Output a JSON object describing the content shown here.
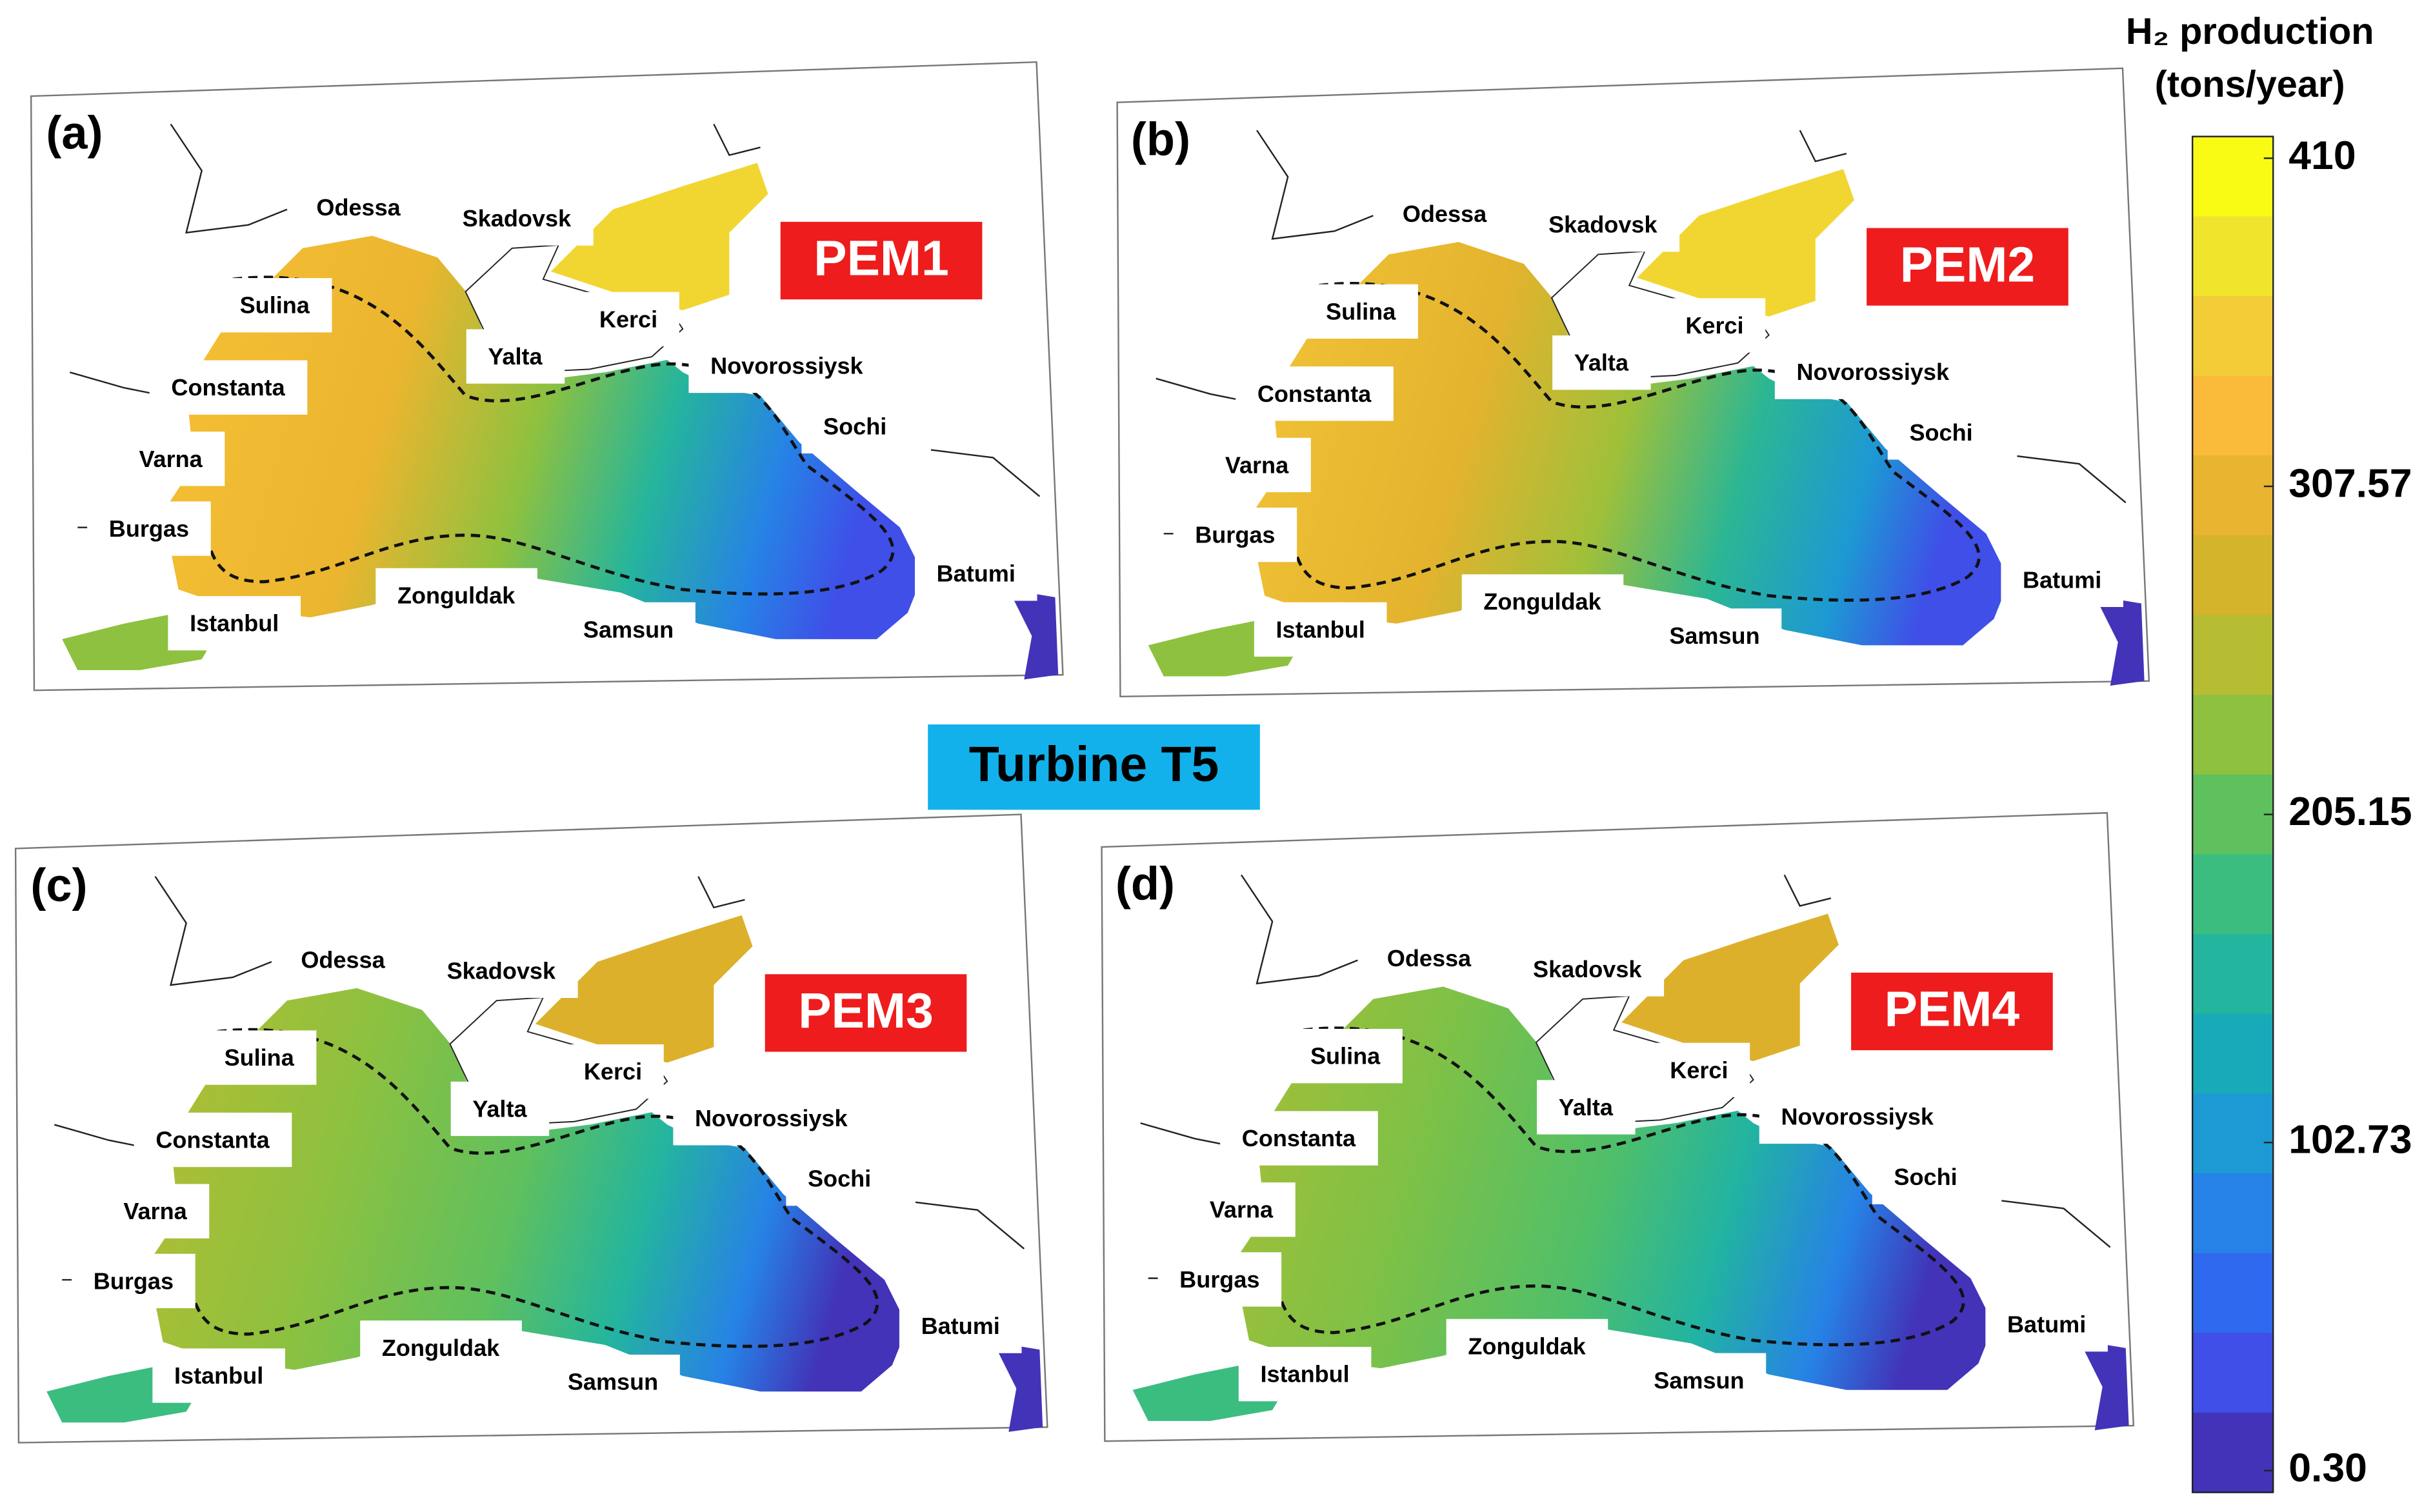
{
  "figure": {
    "center_label": "Turbine T5",
    "panels": [
      {
        "label": "(a)",
        "scenario": "PEM1",
        "cities": [
          "Odessa",
          "Skadovsk",
          "Sulina",
          "Kerci",
          "Yalta",
          "Novorossiysk",
          "Constanta",
          "Sochi",
          "Varna",
          "Burgas",
          "Batumi",
          "Zonguldak",
          "Istanbul",
          "Samsun"
        ]
      },
      {
        "label": "(b)",
        "scenario": "PEM2",
        "cities": [
          "Odessa",
          "Skadovsk",
          "Sulina",
          "Kerci",
          "Yalta",
          "Novorossiysk",
          "Constanta",
          "Sochi",
          "Varna",
          "Burgas",
          "Batumi",
          "Zonguldak",
          "Istanbul",
          "Samsun"
        ]
      },
      {
        "label": "(c)",
        "scenario": "PEM3",
        "cities": [
          "Odessa",
          "Skadovsk",
          "Sulina",
          "Kerci",
          "Yalta",
          "Novorossiysk",
          "Constanta",
          "Sochi",
          "Varna",
          "Burgas",
          "Batumi",
          "Zonguldak",
          "Istanbul",
          "Samsun"
        ]
      },
      {
        "label": "(d)",
        "scenario": "PEM4",
        "cities": [
          "Odessa",
          "Skadovsk",
          "Sulina",
          "Kerci",
          "Yalta",
          "Novorossiysk",
          "Constanta",
          "Sochi",
          "Varna",
          "Burgas",
          "Batumi",
          "Zonguldak",
          "Istanbul",
          "Samsun"
        ]
      }
    ],
    "colorbar": {
      "title": "H₂ production",
      "units": "(tons/year)",
      "ticks": [
        410,
        307.57,
        205.15,
        102.73,
        {
          "value": 0.3,
          "label": "0.30"
        }
      ]
    }
  }
}
